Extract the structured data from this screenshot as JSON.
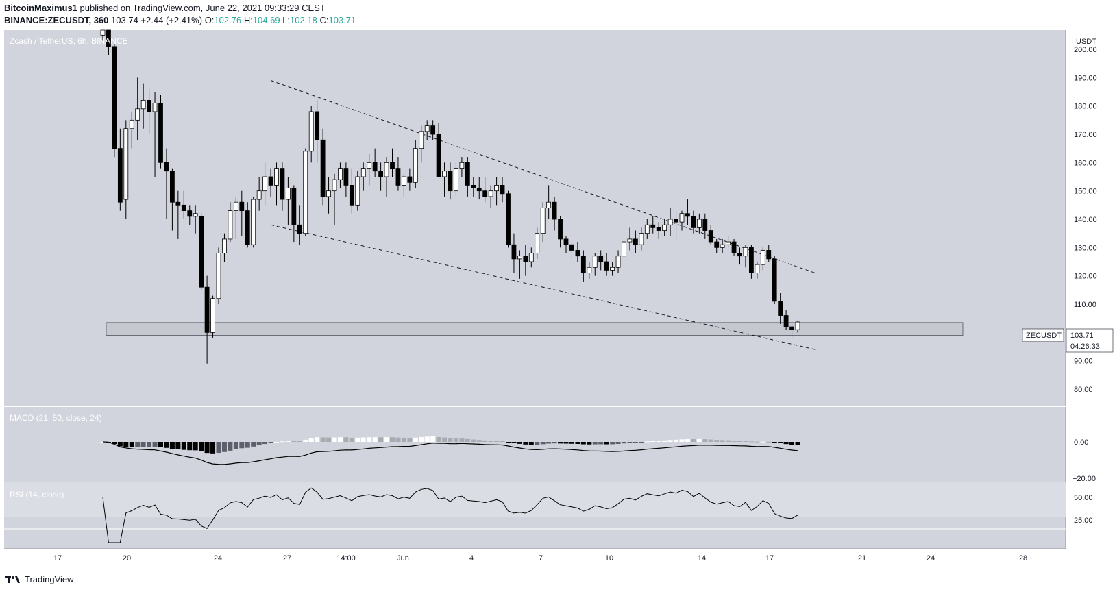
{
  "header": {
    "publisher": "BitcoinMaximus1",
    "published_text": "published on TradingView.com, June 22, 2021 09:33:29 CEST",
    "symbol": "BINANCE:ZECUSDT, 360",
    "last": "103.74",
    "change": "+2.44 (+2.41%)",
    "o_label": "O:",
    "o": "102.76",
    "h_label": "H:",
    "h": "104.69",
    "l_label": "L:",
    "l": "102.18",
    "c_label": "C:",
    "c": "103.71"
  },
  "pane_title": "Zcash / TetherUS, 6h, BINANCE",
  "price_axis": {
    "currency": "USDT",
    "ticks": [
      "200.00",
      "190.00",
      "180.00",
      "170.00",
      "160.00",
      "150.00",
      "140.00",
      "130.00",
      "120.00",
      "110.00",
      "90.00",
      "80.00"
    ]
  },
  "price_label": {
    "symbol": "ZECUSDT",
    "price": "103.71",
    "countdown": "04:26:33"
  },
  "macd": {
    "title": "MACD (21, 50, close, 24)",
    "ticks": [
      "0.00",
      "−20.00"
    ]
  },
  "rsi": {
    "title": "RSI (14, close)",
    "ticks": [
      "50.00",
      "25.00"
    ]
  },
  "time_axis": {
    "labels": [
      "17",
      "20",
      "24",
      "27",
      "14:00",
      "Jun",
      "4",
      "7",
      "10",
      "14",
      "17",
      "21",
      "24",
      "28"
    ]
  },
  "footer": {
    "brand": "TradingView"
  },
  "colors": {
    "pane_bg": "#d1d4dc",
    "candle_up": "#ffffff",
    "candle_down": "#000000",
    "text_teal": "#26a69a"
  },
  "chart_data": {
    "type": "candlestick",
    "title": "Zcash / TetherUS, 6h, BINANCE",
    "x_labels": [
      "17",
      "20",
      "24",
      "27",
      "14:00",
      "Jun",
      "4",
      "7",
      "10",
      "14",
      "17",
      "21",
      "24",
      "28"
    ],
    "ylim": [
      80,
      205
    ],
    "support_zone": [
      99,
      103.5
    ],
    "channel_upper": [
      [
        29,
        189
      ],
      [
        123,
        121
      ]
    ],
    "channel_lower": [
      [
        29,
        138
      ],
      [
        123,
        94
      ]
    ],
    "candles": [
      [
        205,
        210,
        203,
        207
      ],
      [
        207,
        210,
        198,
        201
      ],
      [
        201,
        202,
        162,
        165
      ],
      [
        165,
        172,
        143,
        146
      ],
      [
        147,
        175,
        140,
        172
      ],
      [
        172,
        178,
        165,
        175
      ],
      [
        175,
        190,
        168,
        179
      ],
      [
        179,
        188,
        172,
        182
      ],
      [
        182,
        186,
        170,
        178
      ],
      [
        178,
        185,
        155,
        181
      ],
      [
        181,
        184,
        158,
        160
      ],
      [
        160,
        165,
        140,
        157
      ],
      [
        157,
        158,
        136,
        146
      ],
      [
        146,
        150,
        133,
        145
      ],
      [
        145,
        150,
        140,
        143
      ],
      [
        143,
        145,
        138,
        141
      ],
      [
        141,
        145,
        135,
        142
      ],
      [
        141,
        142,
        115,
        116
      ],
      [
        116,
        120,
        89,
        100
      ],
      [
        100,
        113,
        98,
        112
      ],
      [
        112,
        130,
        110,
        128
      ],
      [
        128,
        135,
        125,
        133
      ],
      [
        133,
        146,
        132,
        143
      ],
      [
        143,
        148,
        133,
        146
      ],
      [
        146,
        150,
        134,
        143
      ],
      [
        143,
        146,
        130,
        131
      ],
      [
        131,
        148,
        130,
        147
      ],
      [
        147,
        155,
        143,
        150
      ],
      [
        150,
        160,
        145,
        155
      ],
      [
        155,
        158,
        148,
        152
      ],
      [
        152,
        160,
        145,
        158
      ],
      [
        158,
        160,
        143,
        147
      ],
      [
        147,
        155,
        138,
        151
      ],
      [
        151,
        152,
        132,
        138
      ],
      [
        138,
        145,
        131,
        135
      ],
      [
        135,
        165,
        134,
        164
      ],
      [
        164,
        180,
        160,
        178
      ],
      [
        178,
        182,
        160,
        168
      ],
      [
        168,
        172,
        145,
        148
      ],
      [
        148,
        155,
        142,
        150
      ],
      [
        150,
        156,
        138,
        154
      ],
      [
        154,
        160,
        151,
        158
      ],
      [
        158,
        160,
        148,
        152
      ],
      [
        152,
        158,
        142,
        145
      ],
      [
        145,
        157,
        143,
        155
      ],
      [
        155,
        160,
        150,
        158
      ],
      [
        158,
        163,
        152,
        160
      ],
      [
        160,
        165,
        155,
        157
      ],
      [
        157,
        160,
        150,
        155
      ],
      [
        155,
        162,
        148,
        160
      ],
      [
        160,
        165,
        155,
        158
      ],
      [
        158,
        162,
        150,
        152
      ],
      [
        152,
        156,
        148,
        155
      ],
      [
        155,
        158,
        150,
        153
      ],
      [
        153,
        168,
        151,
        165
      ],
      [
        165,
        173,
        160,
        171
      ],
      [
        171,
        175,
        168,
        173
      ],
      [
        173,
        175,
        168,
        170
      ],
      [
        170,
        174,
        155,
        155
      ],
      [
        155,
        160,
        148,
        157
      ],
      [
        157,
        160,
        147,
        150
      ],
      [
        150,
        160,
        148,
        158
      ],
      [
        158,
        162,
        155,
        160
      ],
      [
        160,
        162,
        148,
        152
      ],
      [
        152,
        155,
        148,
        151
      ],
      [
        151,
        155,
        147,
        150
      ],
      [
        150,
        155,
        146,
        148
      ],
      [
        148,
        152,
        144,
        150
      ],
      [
        150,
        155,
        145,
        152
      ],
      [
        152,
        155,
        146,
        149
      ],
      [
        149,
        150,
        130,
        131
      ],
      [
        131,
        135,
        121,
        126
      ],
      [
        126,
        129,
        119,
        127
      ],
      [
        127,
        131,
        120,
        125
      ],
      [
        125,
        130,
        123,
        128
      ],
      [
        128,
        137,
        126,
        135
      ],
      [
        135,
        146,
        132,
        144
      ],
      [
        144,
        152,
        140,
        146
      ],
      [
        146,
        148,
        136,
        140
      ],
      [
        140,
        141,
        130,
        133
      ],
      [
        133,
        134,
        128,
        131
      ],
      [
        131,
        132,
        126,
        129
      ],
      [
        129,
        132,
        125,
        127
      ],
      [
        127,
        129,
        118,
        121
      ],
      [
        121,
        125,
        119,
        123
      ],
      [
        123,
        128,
        120,
        127
      ],
      [
        127,
        129,
        122,
        125
      ],
      [
        125,
        128,
        120,
        122
      ],
      [
        122,
        125,
        120,
        123
      ],
      [
        123,
        129,
        121,
        127
      ],
      [
        127,
        134,
        125,
        132
      ],
      [
        132,
        137,
        129,
        133
      ],
      [
        133,
        136,
        128,
        131
      ],
      [
        131,
        137,
        129,
        135
      ],
      [
        135,
        140,
        133,
        138
      ],
      [
        138,
        141,
        135,
        137
      ],
      [
        137,
        139,
        133,
        136
      ],
      [
        136,
        140,
        134,
        138
      ],
      [
        138,
        144,
        134,
        140
      ],
      [
        140,
        143,
        133,
        139
      ],
      [
        139,
        143,
        136,
        142
      ],
      [
        142,
        147,
        138,
        141
      ],
      [
        141,
        143,
        135,
        137
      ],
      [
        137,
        142,
        135,
        140
      ],
      [
        140,
        142,
        133,
        136
      ],
      [
        136,
        138,
        131,
        132
      ],
      [
        132,
        133,
        128,
        130
      ],
      [
        130,
        133,
        128,
        131
      ],
      [
        131,
        134,
        130,
        132
      ],
      [
        132,
        133,
        127,
        128
      ],
      [
        128,
        130,
        124,
        127
      ],
      [
        127,
        131,
        123,
        130
      ],
      [
        130,
        131,
        119,
        121
      ],
      [
        121,
        125,
        119,
        124
      ],
      [
        124,
        130,
        122,
        129
      ],
      [
        129,
        131,
        125,
        126
      ],
      [
        126,
        127,
        110,
        111
      ],
      [
        111,
        114,
        103,
        106
      ],
      [
        106,
        108,
        101,
        102
      ],
      [
        102,
        103,
        98,
        101
      ],
      [
        101,
        104,
        100,
        103.7
      ]
    ]
  }
}
